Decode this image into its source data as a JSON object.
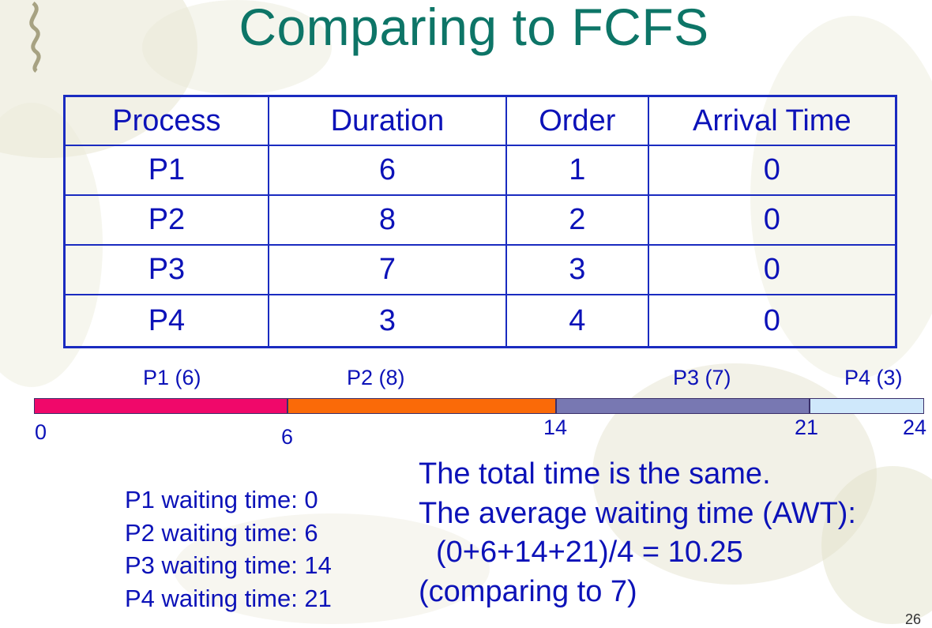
{
  "slide": {
    "title": "Comparing to FCFS",
    "page_number": "26"
  },
  "table": {
    "headers": [
      "Process",
      "Duration",
      "Order",
      "Arrival Time"
    ],
    "rows": [
      [
        "P1",
        "6",
        "1",
        "0"
      ],
      [
        "P2",
        "8",
        "2",
        "0"
      ],
      [
        "P3",
        "7",
        "3",
        "0"
      ],
      [
        "P4",
        "3",
        "4",
        "0"
      ]
    ]
  },
  "gantt": {
    "segments": [
      {
        "label": "P1 (6)",
        "start": 0,
        "end": 6,
        "color": "#f0086a"
      },
      {
        "label": "P2 (8)",
        "start": 6,
        "end": 14,
        "color": "#fa6a08"
      },
      {
        "label": "P3 (7)",
        "start": 14,
        "end": 21,
        "color": "#7878b2"
      },
      {
        "label": "P4 (3)",
        "start": 21,
        "end": 24,
        "color": "#cfe8fb"
      }
    ],
    "ticks": [
      "0",
      "6",
      "14",
      "21",
      "24"
    ]
  },
  "waiting_times": [
    "P1 waiting time: 0",
    "P2 waiting time: 6",
    "P3 waiting time: 14",
    "P4 waiting time: 21"
  ],
  "summary": {
    "line1": "The total time is the same.",
    "line2": "The average waiting time (AWT):",
    "line3": "(0+6+14+21)/4 = 10.25",
    "line4": "(comparing to 7)"
  },
  "colors": {
    "title": "#0d7567",
    "text": "#0c12b8",
    "table_border": "#1a2bc0"
  }
}
